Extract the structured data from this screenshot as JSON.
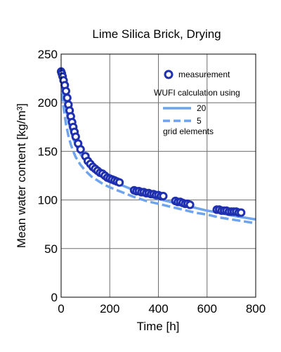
{
  "chart_data": {
    "type": "line",
    "title": "Lime Silica Brick, Drying",
    "xlabel": "Time [h]",
    "ylabel": "Mean water content [kg/m³]",
    "xlim": [
      0,
      800
    ],
    "ylim": [
      0,
      250
    ],
    "xticks": [
      0,
      200,
      400,
      600,
      800
    ],
    "yticks": [
      0,
      50,
      100,
      150,
      200,
      250
    ],
    "grid": true,
    "legend_position": "top-right",
    "legend": {
      "measurement_label": "measurement",
      "header": "WUFI calculation using",
      "line1_label": "20",
      "line2_label": "5",
      "footer": "grid elements"
    },
    "series": [
      {
        "name": "measurement",
        "style": "markers",
        "color": "#1e2fb0",
        "x": [
          0,
          3,
          6,
          10,
          15,
          20,
          25,
          30,
          35,
          40,
          45,
          50,
          55,
          60,
          70,
          80,
          100,
          110,
          120,
          130,
          140,
          150,
          160,
          170,
          180,
          190,
          200,
          210,
          220,
          230,
          240,
          300,
          310,
          320,
          330,
          340,
          350,
          360,
          370,
          380,
          390,
          400,
          410,
          420,
          470,
          480,
          490,
          500,
          510,
          520,
          530,
          640,
          650,
          660,
          670,
          680,
          690,
          700,
          710,
          720,
          730,
          740
        ],
        "y": [
          232,
          230,
          227,
          223,
          218,
          212,
          205,
          198,
          192,
          186,
          180,
          175,
          170,
          165,
          158,
          152,
          145,
          140,
          137,
          134,
          132,
          130,
          128,
          127,
          125,
          123,
          122,
          121,
          120,
          119,
          118,
          110,
          109,
          109,
          108,
          108,
          107,
          107,
          106,
          106,
          105,
          105,
          104,
          104,
          99,
          98,
          98,
          97,
          96,
          96,
          95,
          90,
          90,
          89,
          89,
          89,
          88,
          88,
          88,
          88,
          87,
          87
        ]
      },
      {
        "name": "20",
        "style": "solid",
        "color": "#6fa3ee",
        "x": [
          0,
          5,
          10,
          20,
          30,
          40,
          50,
          60,
          80,
          100,
          125,
          150,
          175,
          200,
          250,
          300,
          350,
          400,
          450,
          500,
          550,
          600,
          650,
          700,
          750,
          800
        ],
        "y": [
          228,
          218,
          209,
          194,
          181,
          171,
          163,
          157,
          147,
          140,
          134,
          129,
          124,
          121,
          115,
          110,
          105,
          101,
          98,
          95,
          92,
          89,
          87,
          84,
          82,
          80
        ]
      },
      {
        "name": "5",
        "style": "dashed",
        "color": "#6fa3ee",
        "x": [
          0,
          5,
          10,
          20,
          30,
          40,
          50,
          60,
          80,
          100,
          125,
          150,
          175,
          200,
          250,
          300,
          350,
          400,
          450,
          500,
          550,
          600,
          650,
          700,
          750,
          800
        ],
        "y": [
          222,
          206,
          195,
          178,
          166,
          157,
          150,
          144,
          136,
          130,
          124,
          120,
          116,
          113,
          108,
          103,
          99,
          96,
          93,
          90,
          87,
          85,
          82,
          80,
          78,
          76
        ]
      }
    ]
  }
}
